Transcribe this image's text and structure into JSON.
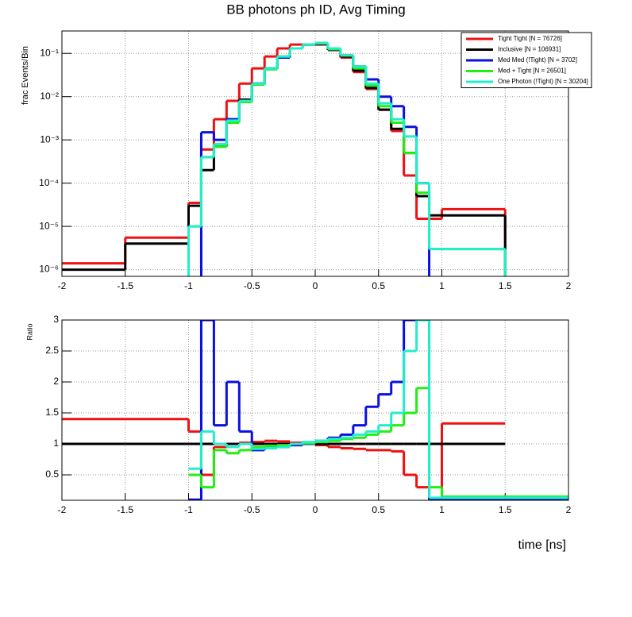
{
  "chart_data": [
    {
      "type": "histogram",
      "title": "BB photons ph ID, Avg Timing",
      "ylabel": "frac Events/Bin",
      "bins": [
        -2,
        -1.5,
        -1,
        -0.9,
        -0.8,
        -0.7,
        -0.6,
        -0.5,
        -0.4,
        -0.3,
        -0.2,
        -0.1,
        0,
        0.1,
        0.2,
        0.3,
        0.4,
        0.5,
        0.6,
        0.7,
        0.8,
        0.9,
        1,
        1.5,
        2
      ],
      "series": [
        {
          "name": "Tight Tight [N = 76726]",
          "color": "#ee1111",
          "values": [
            1.4e-06,
            5.5e-06,
            3.5e-05,
            0.0006,
            0.003,
            0.008,
            0.02,
            0.045,
            0.085,
            0.13,
            0.16,
            0.16,
            0.16,
            0.12,
            0.08,
            0.037,
            0.015,
            0.005,
            0.0016,
            0.00015,
            1.5e-05,
            1.5e-05,
            2.5e-05,
            0
          ]
        },
        {
          "name": "Inclusive [N = 106931]",
          "color": "#000000",
          "values": [
            1e-06,
            4e-06,
            3e-05,
            0.0002,
            0.0007,
            0.0028,
            0.0085,
            0.02,
            0.045,
            0.085,
            0.13,
            0.16,
            0.165,
            0.12,
            0.085,
            0.04,
            0.016,
            0.005,
            0.0018,
            0.0005,
            5e-05,
            1.8e-05,
            1.8e-05,
            0
          ]
        },
        {
          "name": "Med Med (!Tight) [N = 3702]",
          "color": "#0a10dd",
          "values": [
            0,
            0,
            0,
            0.0015,
            0.001,
            0.003,
            0.008,
            0.02,
            0.045,
            0.08,
            0.13,
            0.16,
            0.17,
            0.13,
            0.09,
            0.05,
            0.025,
            0.01,
            0.006,
            0.002,
            0.0001,
            0,
            0,
            0
          ]
        },
        {
          "name": "Med + Tight [N = 26501]",
          "color": "#22ee11",
          "values": [
            0,
            0,
            1e-05,
            0.0004,
            0.0007,
            0.0025,
            0.0075,
            0.019,
            0.043,
            0.085,
            0.13,
            0.16,
            0.17,
            0.125,
            0.09,
            0.045,
            0.018,
            0.006,
            0.0025,
            0.0005,
            6e-05,
            3e-06,
            3e-06,
            0
          ]
        },
        {
          "name": "One Photon (!Tight) [N = 30204]",
          "color": "#22eecc",
          "values": [
            0,
            0,
            1e-05,
            0.0004,
            0.0008,
            0.0028,
            0.008,
            0.02,
            0.045,
            0.085,
            0.13,
            0.16,
            0.175,
            0.13,
            0.09,
            0.05,
            0.02,
            0.007,
            0.003,
            0.0012,
            0.0001,
            3e-06,
            3e-06,
            0
          ]
        }
      ],
      "xlim": [
        -2,
        2
      ],
      "xticks": [
        -2,
        -1.5,
        -1,
        -0.5,
        0,
        0.5,
        1,
        1.5,
        2
      ],
      "ylim": [
        7e-07,
        0.33
      ],
      "log_y": true,
      "yticks": [
        {
          "value": 1e-06,
          "label": "10⁻⁶"
        },
        {
          "value": 1e-05,
          "label": "10⁻⁵"
        },
        {
          "value": 0.0001,
          "label": "10⁻⁴"
        },
        {
          "value": 0.001,
          "label": "10⁻³"
        },
        {
          "value": 0.01,
          "label": "10⁻²"
        },
        {
          "value": 0.1,
          "label": "10⁻¹"
        }
      ],
      "grid": true,
      "legend": "upper right"
    },
    {
      "type": "histogram",
      "ylabel": "Ratio",
      "xlabel": "time [ns]",
      "bins": [
        -2,
        -1.5,
        -1,
        -0.9,
        -0.8,
        -0.7,
        -0.6,
        -0.5,
        -0.4,
        -0.3,
        -0.2,
        -0.1,
        0,
        0.1,
        0.2,
        0.3,
        0.4,
        0.5,
        0.6,
        0.7,
        0.8,
        0.9,
        1,
        1.5,
        2
      ],
      "series": [
        {
          "color": "#ee1111",
          "values": [
            1.4,
            1.4,
            1.2,
            0.5,
            0.95,
            1.0,
            1.02,
            1.03,
            1.05,
            1.04,
            1.02,
            1.0,
            0.98,
            0.95,
            0.93,
            0.92,
            0.9,
            0.9,
            0.88,
            0.5,
            0.3,
            0.1,
            1.33,
            null
          ]
        },
        {
          "color": "#000000",
          "values": [
            1,
            1,
            1,
            1,
            1,
            1,
            1,
            1,
            1,
            1,
            1,
            1,
            1,
            1,
            1,
            1,
            1,
            1,
            1,
            1,
            1,
            1,
            1,
            null
          ]
        },
        {
          "color": "#0a10dd",
          "values": [
            null,
            null,
            0.1,
            3,
            1.3,
            2,
            1.2,
            0.9,
            0.95,
            0.95,
            0.98,
            1.0,
            1.05,
            1.1,
            1.15,
            1.3,
            1.6,
            1.8,
            2,
            3,
            3,
            0.1,
            0.1,
            0.1
          ]
        },
        {
          "color": "#22ee11",
          "values": [
            null,
            null,
            0.5,
            0.3,
            0.9,
            0.85,
            0.9,
            0.95,
            0.97,
            0.98,
            1.0,
            1.01,
            1.03,
            1.05,
            1.08,
            1.1,
            1.15,
            1.2,
            1.3,
            1.5,
            1.9,
            0.3,
            0.15,
            0.15
          ]
        },
        {
          "color": "#22eecc",
          "values": [
            null,
            null,
            0.6,
            1.2,
            1.0,
            0.95,
            1.0,
            0.92,
            0.93,
            0.95,
            1.0,
            1.03,
            1.05,
            1.08,
            1.1,
            1.15,
            1.2,
            1.3,
            1.5,
            2.5,
            3,
            0.13,
            0.13,
            0.13
          ]
        }
      ],
      "xlim": [
        -2,
        2
      ],
      "xticks": [
        -2,
        -1.5,
        -1,
        -0.5,
        0,
        0.5,
        1,
        1.5,
        2
      ],
      "ylim": [
        0.09,
        3
      ],
      "yticks": [
        0.5,
        1,
        1.5,
        2,
        2.5,
        3
      ],
      "grid": true
    }
  ]
}
